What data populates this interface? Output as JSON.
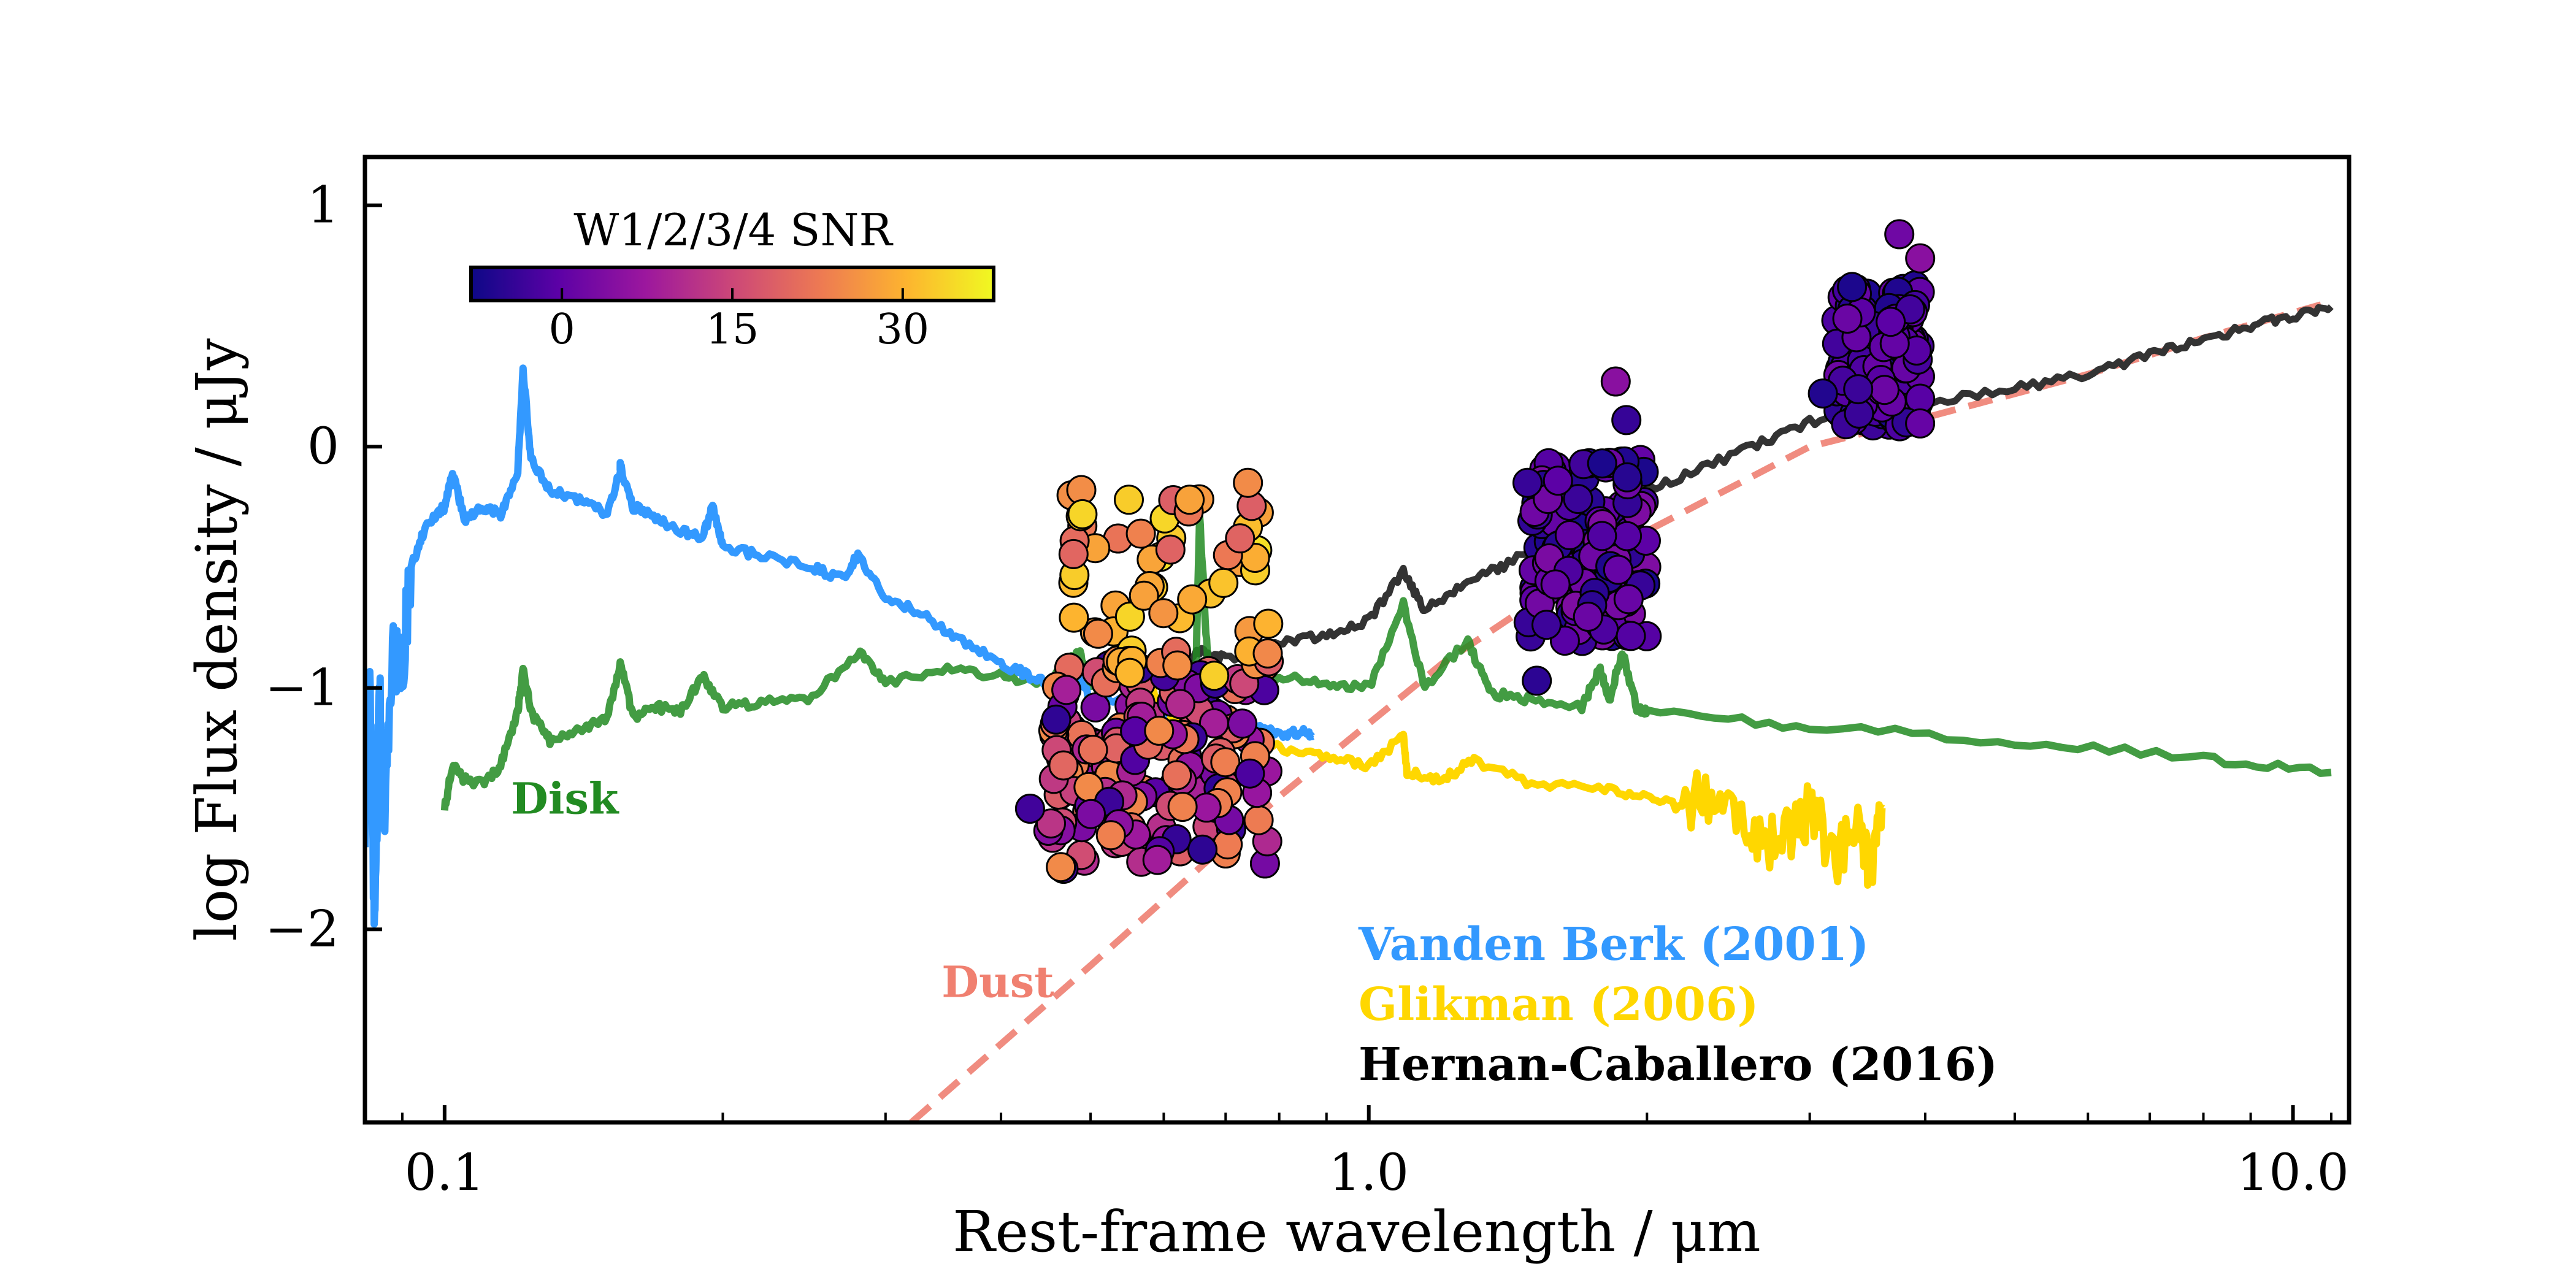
{
  "chart_data": {
    "type": "line",
    "xlabel": "Rest-frame wavelength / μm",
    "ylabel": "log Flux density  / μJy",
    "xscale": "log",
    "xlim": [
      0.082,
      11.5
    ],
    "ylim": [
      -2.8,
      1.2
    ],
    "x_ticks": [
      {
        "value": 0.1,
        "label": "0.1"
      },
      {
        "value": 1.0,
        "label": "1.0"
      },
      {
        "value": 10.0,
        "label": "10.0"
      }
    ],
    "y_ticks": [
      {
        "value": 1,
        "label": "1"
      },
      {
        "value": 0,
        "label": "0"
      },
      {
        "value": -1,
        "label": "−1"
      },
      {
        "value": -2,
        "label": "−2"
      }
    ],
    "colorbar": {
      "title": "W1/2/3/4 SNR",
      "range": [
        -8,
        38
      ],
      "ticks": [
        {
          "value": 0,
          "label": "0"
        },
        {
          "value": 15,
          "label": "15"
        },
        {
          "value": 30,
          "label": "30"
        }
      ],
      "colormap": [
        "#0d0887",
        "#5c01a6",
        "#9c179e",
        "#cc4778",
        "#ed7953",
        "#fdb42f",
        "#f0f921"
      ]
    },
    "legend": {
      "placement": "lower-right",
      "entries": [
        {
          "label": "Vanden Berk (2001)",
          "color": "#3399ff"
        },
        {
          "label": "Glikman (2006)",
          "color": "#ffd700"
        },
        {
          "label": "Hernan-Caballero (2016)",
          "color": "#000000"
        }
      ]
    },
    "annotations": [
      {
        "text": "Disk",
        "color": "#228b22",
        "x": 0.118,
        "y": -1.52
      },
      {
        "text": "Dust",
        "color": "#f08070",
        "x": 0.345,
        "y": -2.28
      }
    ],
    "series": [
      {
        "name": "Vanden Berk (2001)",
        "color": "#3399ff",
        "x": [
          0.082,
          0.083,
          0.084,
          0.085,
          0.086,
          0.088,
          0.09,
          0.092,
          0.095,
          0.098,
          0.1,
          0.102,
          0.105,
          0.11,
          0.115,
          0.12,
          0.1216,
          0.124,
          0.13,
          0.14,
          0.15,
          0.155,
          0.1549,
          0.16,
          0.17,
          0.18,
          0.19,
          0.195,
          0.2,
          0.22,
          0.25,
          0.27,
          0.28,
          0.3,
          0.33,
          0.36,
          0.4,
          0.43,
          0.46,
          0.486,
          0.5,
          0.55,
          0.6,
          0.656,
          0.7,
          0.75,
          0.8,
          0.85,
          0.87
        ],
        "y": [
          -1.6,
          -1.0,
          -2.0,
          -1.0,
          -1.5,
          -0.85,
          -0.9,
          -0.5,
          -0.35,
          -0.28,
          -0.25,
          -0.1,
          -0.3,
          -0.25,
          -0.28,
          -0.1,
          0.32,
          -0.05,
          -0.18,
          -0.22,
          -0.28,
          -0.1,
          -0.08,
          -0.25,
          -0.3,
          -0.35,
          -0.38,
          -0.25,
          -0.42,
          -0.45,
          -0.5,
          -0.55,
          -0.45,
          -0.62,
          -0.7,
          -0.8,
          -0.9,
          -0.95,
          -1.0,
          -0.95,
          -1.05,
          -1.05,
          -1.1,
          -0.95,
          -1.1,
          -1.15,
          -1.2,
          -1.18,
          -1.2
        ]
      },
      {
        "name": "Glikman (2006)",
        "color": "#ffd700",
        "x": [
          0.58,
          0.6,
          0.65,
          0.7,
          0.75,
          0.8,
          0.9,
          1.0,
          1.09,
          1.1,
          1.2,
          1.3,
          1.5,
          1.8,
          2.0,
          2.2,
          2.4,
          2.6,
          2.8,
          3.0,
          3.2,
          3.4,
          3.5,
          3.6
        ],
        "y": [
          -1.0,
          -1.1,
          -1.15,
          -1.2,
          -1.22,
          -1.25,
          -1.28,
          -1.32,
          -1.2,
          -1.35,
          -1.38,
          -1.3,
          -1.4,
          -1.42,
          -1.45,
          -1.5,
          -1.4,
          -1.6,
          -1.65,
          -1.5,
          -1.7,
          -1.6,
          -1.8,
          -1.5
        ]
      },
      {
        "name": "Hernan-Caballero (2016)",
        "color": "#333333",
        "x": [
          0.45,
          0.5,
          0.55,
          0.6,
          0.656,
          0.7,
          0.8,
          0.9,
          1.0,
          1.09,
          1.15,
          1.28,
          1.4,
          1.6,
          1.9,
          2.2,
          2.6,
          3.0,
          3.5,
          4.0,
          5.0,
          6.0,
          7.0,
          8.0,
          9.0,
          10.0,
          11.0
        ],
        "y": [
          -0.97,
          -0.95,
          -0.95,
          -0.92,
          -0.85,
          -0.88,
          -0.82,
          -0.78,
          -0.72,
          -0.52,
          -0.68,
          -0.55,
          -0.5,
          -0.35,
          -0.22,
          -0.12,
          0.0,
          0.1,
          0.15,
          0.18,
          0.24,
          0.3,
          0.38,
          0.44,
          0.5,
          0.54,
          0.58
        ]
      },
      {
        "name": "Disk",
        "color": "#228b22",
        "x": [
          0.1,
          0.102,
          0.105,
          0.11,
          0.115,
          0.12,
          0.1216,
          0.124,
          0.13,
          0.14,
          0.15,
          0.1549,
          0.16,
          0.17,
          0.18,
          0.19,
          0.2,
          0.22,
          0.25,
          0.28,
          0.3,
          0.35,
          0.4,
          0.45,
          0.486,
          0.5,
          0.55,
          0.6,
          0.65,
          0.656,
          0.67,
          0.7,
          0.8,
          0.9,
          1.0,
          1.09,
          1.15,
          1.28,
          1.35,
          1.5,
          1.7,
          1.78,
          1.82,
          1.88,
          1.95,
          2.0,
          3.0,
          5.0,
          8.0,
          11.0
        ],
        "y": [
          -1.5,
          -1.32,
          -1.38,
          -1.4,
          -1.32,
          -1.1,
          -0.92,
          -1.1,
          -1.22,
          -1.18,
          -1.12,
          -0.9,
          -1.12,
          -1.08,
          -1.1,
          -0.95,
          -1.08,
          -1.06,
          -1.04,
          -0.85,
          -0.98,
          -0.92,
          -0.95,
          -0.98,
          -0.85,
          -1.0,
          -0.98,
          -0.92,
          -0.95,
          -0.28,
          -0.92,
          -0.98,
          -0.95,
          -0.98,
          -1.0,
          -0.65,
          -1.0,
          -0.8,
          -1.02,
          -1.05,
          -1.08,
          -0.92,
          -1.05,
          -0.85,
          -1.08,
          -1.1,
          -1.16,
          -1.22,
          -1.29,
          -1.35
        ]
      },
      {
        "name": "Dust",
        "color": "#f08c80",
        "dashed": true,
        "x": [
          0.32,
          0.5,
          0.8,
          1.2,
          1.6,
          2.0,
          3.0,
          4.0,
          6.0,
          8.0,
          11.0
        ],
        "y": [
          -2.8,
          -2.15,
          -1.45,
          -0.9,
          -0.58,
          -0.35,
          0.0,
          0.12,
          0.3,
          0.45,
          0.6
        ]
      }
    ],
    "scatter_groups": [
      {
        "name": "g1",
        "x_range": [
          0.45,
          0.78
        ],
        "y_range": [
          -1.75,
          -0.9
        ],
        "color_range": [
          -5,
          25
        ],
        "seed": 11,
        "count": 180
      },
      {
        "name": "g1-upper",
        "x_range": [
          0.47,
          0.78
        ],
        "y_range": [
          -0.95,
          -0.15
        ],
        "color_range": [
          18,
          36
        ],
        "seed": 23,
        "count": 60
      },
      {
        "name": "g2",
        "x_range": [
          1.48,
          2.0
        ],
        "y_range": [
          -0.82,
          -0.05
        ],
        "color_range": [
          -7,
          4
        ],
        "seed": 37,
        "count": 140
      },
      {
        "name": "g3",
        "x_range": [
          3.2,
          3.95
        ],
        "y_range": [
          0.08,
          0.68
        ],
        "color_range": [
          -7,
          2
        ],
        "seed": 53,
        "count": 150
      }
    ],
    "scatter_extra_points": [
      {
        "x": 1.52,
        "y": -0.97,
        "c": -5
      },
      {
        "x": 1.85,
        "y": 0.27,
        "c": 5
      },
      {
        "x": 1.9,
        "y": 0.11,
        "c": -4
      },
      {
        "x": 3.1,
        "y": 0.22,
        "c": -6
      },
      {
        "x": 3.75,
        "y": 0.88,
        "c": 2
      },
      {
        "x": 3.95,
        "y": 0.78,
        "c": 5
      },
      {
        "x": 0.43,
        "y": -1.5,
        "c": -3
      },
      {
        "x": 0.49,
        "y": -0.28,
        "c": 34
      },
      {
        "x": 0.55,
        "y": -0.22,
        "c": 33
      },
      {
        "x": 0.64,
        "y": -0.22,
        "c": 28
      },
      {
        "x": 0.74,
        "y": -0.15,
        "c": 25
      }
    ]
  }
}
